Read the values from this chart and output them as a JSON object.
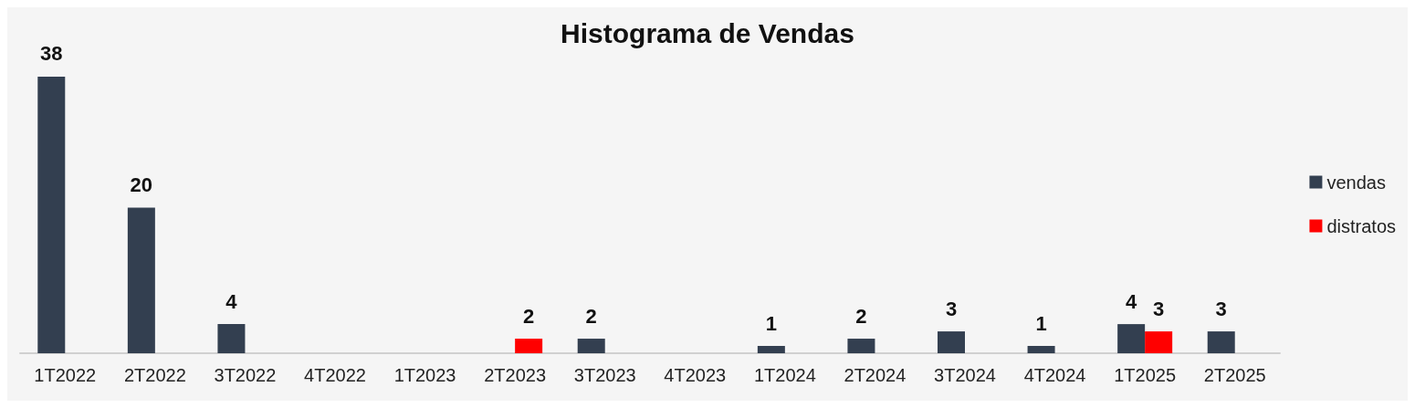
{
  "chart_data": {
    "type": "bar",
    "title": "Histograma de Vendas",
    "categories": [
      "1T2022",
      "2T2022",
      "3T2022",
      "4T2022",
      "1T2023",
      "2T2023",
      "3T2023",
      "4T2023",
      "1T2024",
      "2T2024",
      "3T2024",
      "4T2024",
      "1T2025",
      "2T2025"
    ],
    "series": [
      {
        "name": "vendas",
        "color": "#333f50",
        "values": [
          38,
          20,
          4,
          null,
          null,
          null,
          2,
          null,
          1,
          2,
          3,
          1,
          4,
          3
        ]
      },
      {
        "name": "distratos",
        "color": "#ff0000",
        "values": [
          null,
          null,
          null,
          null,
          null,
          2,
          null,
          null,
          null,
          null,
          null,
          null,
          3,
          null
        ]
      }
    ],
    "data_labels": true,
    "legend": "right"
  }
}
